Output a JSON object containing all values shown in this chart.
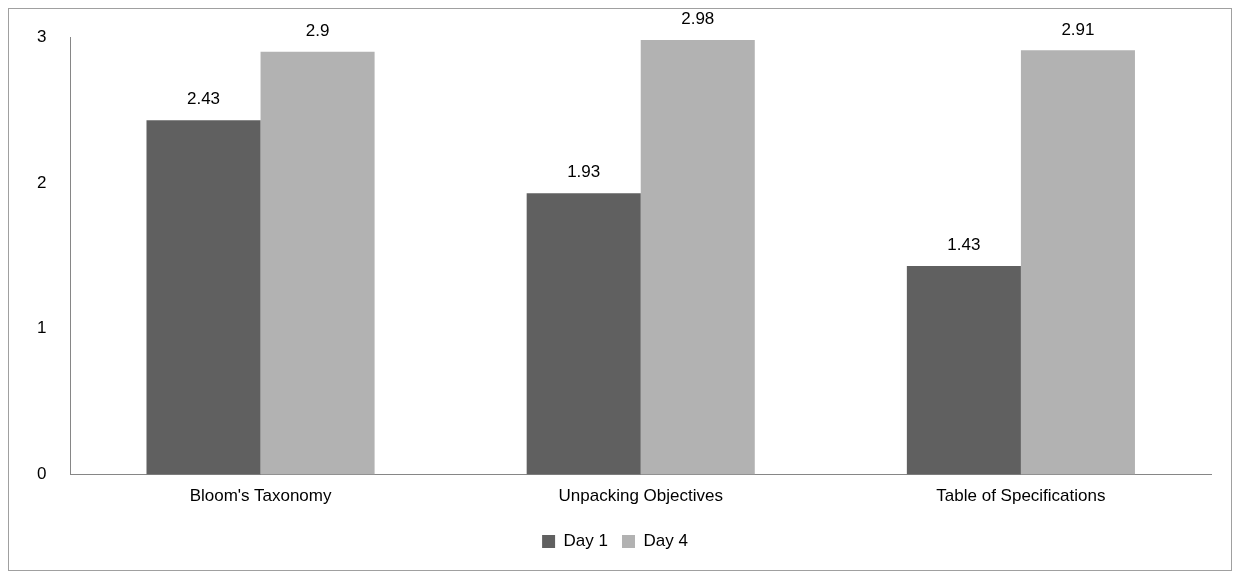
{
  "chart_data": {
    "type": "bar",
    "categories": [
      "Bloom's Taxonomy",
      "Unpacking Objectives",
      "Table of Specifications"
    ],
    "series": [
      {
        "name": "Day 1",
        "color": "#606060",
        "values": [
          2.43,
          1.93,
          1.43
        ]
      },
      {
        "name": "Day 4",
        "color": "#b2b2b2",
        "values": [
          2.9,
          2.98,
          2.91
        ]
      }
    ],
    "ylim": [
      0,
      3
    ],
    "yticks": [
      0,
      1,
      2,
      3
    ],
    "grid": false,
    "legend": "bottom",
    "data_labels": true
  }
}
